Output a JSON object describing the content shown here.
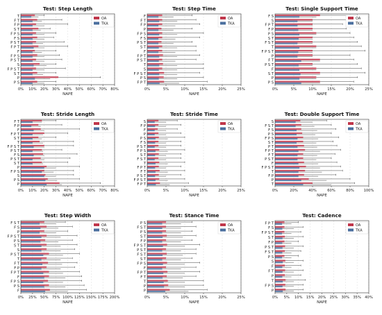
{
  "colors": {
    "oa": "#c0364a",
    "tka": "#4a6e9e",
    "grid": "#dddddd",
    "axis": "#333333",
    "whisker": "#444444"
  },
  "chart_data": [
    {
      "type": "bar",
      "title": "Test: Step Length",
      "xlabel": "NAPE",
      "xlim": [
        0,
        0.8
      ],
      "xticks": [
        0,
        0.1,
        0.2,
        0.3,
        0.4,
        0.5,
        0.6,
        0.7,
        0.8
      ],
      "xtick_labels": [
        "0%",
        "10%",
        "20%",
        "30%",
        "40%",
        "50%",
        "60%",
        "70%",
        "80%"
      ],
      "categories": [
        "T",
        "F T",
        "F P",
        "S T",
        "F P S",
        "F S",
        "P S T",
        "F P T",
        "F",
        "F P S",
        "P S T",
        "S",
        "F P S T",
        "S T",
        "P",
        "P S"
      ],
      "legend": [
        "OA",
        "TKA"
      ],
      "legend_position": "top-right",
      "series": [
        {
          "name": "OA",
          "values": [
            0.12,
            0.14,
            0.13,
            0.15,
            0.13,
            0.14,
            0.13,
            0.15,
            0.12,
            0.14,
            0.13,
            0.16,
            0.13,
            0.14,
            0.32,
            0.14
          ],
          "upper": [
            0.2,
            0.35,
            0.4,
            0.25,
            0.3,
            0.28,
            0.37,
            0.4,
            0.3,
            0.33,
            0.35,
            0.3,
            0.38,
            0.3,
            0.68,
            0.3
          ]
        },
        {
          "name": "TKA",
          "values": [
            0.09,
            0.1,
            0.1,
            0.1,
            0.1,
            0.1,
            0.1,
            0.11,
            0.1,
            0.1,
            0.1,
            0.11,
            0.1,
            0.1,
            0.12,
            0.1
          ],
          "upper": [
            0.15,
            0.18,
            0.2,
            0.17,
            0.2,
            0.2,
            0.19,
            0.2,
            0.18,
            0.2,
            0.2,
            0.22,
            0.2,
            0.19,
            0.25,
            0.2
          ]
        }
      ]
    },
    {
      "type": "bar",
      "title": "Test: Step Time",
      "xlabel": "NAPE",
      "xlim": [
        0,
        0.25
      ],
      "xticks": [
        0,
        0.05,
        0.1,
        0.15,
        0.2,
        0.25
      ],
      "xtick_labels": [
        "0%",
        "5%",
        "10%",
        "15%",
        "20%",
        "25%"
      ],
      "categories": [
        "F",
        "F T",
        "F P",
        "P",
        "F P S",
        "F S",
        "P S T",
        "S T",
        "F",
        "F P T",
        "P S T",
        "T",
        "S",
        "F P S T",
        "P S",
        "F P T"
      ],
      "legend": [
        "OA",
        "TKA"
      ],
      "legend_position": "top-right",
      "series": [
        {
          "name": "OA",
          "values": [
            0.04,
            0.04,
            0.04,
            0.038,
            0.04,
            0.04,
            0.038,
            0.04,
            0.04,
            0.042,
            0.04,
            0.042,
            0.04,
            0.045,
            0.044,
            0.045
          ],
          "upper": [
            0.12,
            0.13,
            0.14,
            0.12,
            0.15,
            0.14,
            0.12,
            0.13,
            0.13,
            0.14,
            0.13,
            0.15,
            0.15,
            0.14,
            0.15,
            0.16
          ]
        },
        {
          "name": "TKA",
          "values": [
            0.03,
            0.032,
            0.03,
            0.03,
            0.032,
            0.03,
            0.03,
            0.031,
            0.03,
            0.032,
            0.031,
            0.032,
            0.031,
            0.032,
            0.031,
            0.033
          ],
          "upper": [
            0.07,
            0.08,
            0.075,
            0.07,
            0.08,
            0.075,
            0.07,
            0.08,
            0.075,
            0.08,
            0.075,
            0.08,
            0.08,
            0.08,
            0.08,
            0.085
          ]
        }
      ]
    },
    {
      "type": "bar",
      "title": "Test: Single Support Time",
      "xlabel": "NAPE",
      "xlim": [
        0,
        0.25
      ],
      "xticks": [
        0,
        0.05,
        0.1,
        0.15,
        0.2,
        0.25
      ],
      "xtick_labels": [
        "0%",
        "5%",
        "10%",
        "15%",
        "20%",
        "25%"
      ],
      "categories": [
        "F S",
        "S",
        "F P T",
        "F P",
        "P S",
        "S T",
        "F S T",
        "T",
        "F P S T",
        "P",
        "F T",
        "P S T",
        "F",
        "S T",
        "P",
        "P S"
      ],
      "legend": [
        "OA",
        "TKA"
      ],
      "legend_position": "top-right",
      "series": [
        {
          "name": "OA",
          "values": [
            0.12,
            0.1,
            0.1,
            0.1,
            0.11,
            0.1,
            0.1,
            0.11,
            0.1,
            0.1,
            0.12,
            0.1,
            0.11,
            0.12,
            0.11,
            0.12
          ],
          "upper": [
            0.22,
            0.2,
            0.18,
            0.19,
            0.2,
            0.21,
            0.22,
            0.23,
            0.24,
            0.2,
            0.21,
            0.22,
            0.23,
            0.24,
            0.22,
            0.21
          ]
        },
        {
          "name": "TKA",
          "values": [
            0.065,
            0.06,
            0.06,
            0.062,
            0.065,
            0.063,
            0.06,
            0.065,
            0.062,
            0.06,
            0.07,
            0.063,
            0.065,
            0.068,
            0.065,
            0.07
          ],
          "upper": [
            0.11,
            0.1,
            0.1,
            0.1,
            0.11,
            0.1,
            0.1,
            0.11,
            0.1,
            0.1,
            0.12,
            0.1,
            0.11,
            0.12,
            0.11,
            0.12
          ]
        }
      ]
    },
    {
      "type": "bar",
      "title": "Test: Stride Length",
      "xlabel": "NAPE",
      "xlim": [
        0,
        0.8
      ],
      "xticks": [
        0,
        0.1,
        0.2,
        0.3,
        0.4,
        0.5,
        0.6,
        0.7,
        0.8
      ],
      "xtick_labels": [
        "0%",
        "10%",
        "20%",
        "30%",
        "40%",
        "50%",
        "60%",
        "70%",
        "80%"
      ],
      "categories": [
        "F T",
        "F P",
        "F",
        "F P T",
        "S T",
        "T",
        "F P S T",
        "P S T",
        "F S",
        "P S T",
        "S T",
        "P",
        "F P S",
        "S",
        "P S",
        "P"
      ],
      "legend": [
        "OA",
        "TKA"
      ],
      "legend_position": "top-right",
      "series": [
        {
          "name": "OA",
          "values": [
            0.18,
            0.15,
            0.17,
            0.2,
            0.15,
            0.16,
            0.2,
            0.18,
            0.19,
            0.17,
            0.18,
            0.22,
            0.2,
            0.21,
            0.23,
            0.33
          ],
          "upper": [
            0.3,
            0.35,
            0.5,
            0.4,
            0.3,
            0.45,
            0.45,
            0.35,
            0.48,
            0.42,
            0.4,
            0.5,
            0.45,
            0.45,
            0.5,
            0.68
          ]
        },
        {
          "name": "TKA",
          "values": [
            0.1,
            0.09,
            0.11,
            0.1,
            0.1,
            0.1,
            0.11,
            0.1,
            0.11,
            0.1,
            0.1,
            0.2,
            0.18,
            0.2,
            0.21,
            0.22
          ],
          "upper": [
            0.18,
            0.17,
            0.2,
            0.19,
            0.18,
            0.19,
            0.2,
            0.19,
            0.2,
            0.2,
            0.19,
            0.3,
            0.28,
            0.3,
            0.31,
            0.35
          ]
        }
      ]
    },
    {
      "type": "bar",
      "title": "Test: Stride Time",
      "xlabel": "NAPE",
      "xlim": [
        0,
        0.25
      ],
      "xticks": [
        0,
        0.05,
        0.1,
        0.15,
        0.2,
        0.25
      ],
      "xtick_labels": [
        "0%",
        "5%",
        "10%",
        "15%",
        "20%",
        "25%"
      ],
      "categories": [
        "S",
        "F P",
        "F",
        "P",
        "P S",
        "F S",
        "P S T",
        "F P S",
        "S T",
        "F S T",
        "T",
        "F P T",
        "F T",
        "P S T",
        "F P S T",
        "F P T"
      ],
      "legend": [
        "OA",
        "TKA"
      ],
      "legend_position": "top-right",
      "series": [
        {
          "name": "OA",
          "values": [
            0.03,
            0.03,
            0.028,
            0.03,
            0.031,
            0.03,
            0.03,
            0.032,
            0.031,
            0.03,
            0.032,
            0.031,
            0.033,
            0.031,
            0.032,
            0.034
          ],
          "upper": [
            0.08,
            0.09,
            0.08,
            0.09,
            0.1,
            0.09,
            0.09,
            0.1,
            0.09,
            0.09,
            0.1,
            0.09,
            0.1,
            0.09,
            0.1,
            0.11
          ]
        },
        {
          "name": "TKA",
          "values": [
            0.02,
            0.021,
            0.02,
            0.02,
            0.022,
            0.021,
            0.02,
            0.022,
            0.021,
            0.02,
            0.022,
            0.021,
            0.022,
            0.021,
            0.022,
            0.023
          ],
          "upper": [
            0.05,
            0.05,
            0.05,
            0.05,
            0.055,
            0.05,
            0.05,
            0.055,
            0.05,
            0.05,
            0.055,
            0.05,
            0.055,
            0.05,
            0.055,
            0.06
          ]
        }
      ]
    },
    {
      "type": "bar",
      "title": "Test: Double Support Time",
      "xlabel": "NAPE",
      "xlim": [
        0,
        1.0
      ],
      "xticks": [
        0,
        0.2,
        0.4,
        0.6,
        0.8,
        1.0
      ],
      "xtick_labels": [
        "0%",
        "20%",
        "40%",
        "60%",
        "80%",
        "100%"
      ],
      "categories": [
        "S",
        "F S T",
        "F S",
        "P S",
        "F P S",
        "S T",
        "P T",
        "F P T",
        "F T",
        "P S T",
        "F",
        "F P S T",
        "T",
        "F P",
        "P",
        "T"
      ],
      "legend": [
        "OA",
        "TKA"
      ],
      "legend_position": "top-right",
      "series": [
        {
          "name": "OA",
          "values": [
            0.27,
            0.28,
            0.28,
            0.29,
            0.3,
            0.3,
            0.31,
            0.32,
            0.3,
            0.3,
            0.31,
            0.33,
            0.32,
            0.31,
            0.36,
            0.4
          ],
          "upper": [
            0.55,
            0.6,
            0.65,
            0.6,
            0.68,
            0.62,
            0.66,
            0.7,
            0.64,
            0.6,
            0.66,
            0.7,
            0.72,
            0.65,
            0.8,
            0.85
          ]
        },
        {
          "name": "TKA",
          "values": [
            0.22,
            0.22,
            0.23,
            0.23,
            0.24,
            0.23,
            0.24,
            0.25,
            0.24,
            0.24,
            0.25,
            0.26,
            0.25,
            0.25,
            0.28,
            0.3
          ],
          "upper": [
            0.4,
            0.42,
            0.45,
            0.43,
            0.46,
            0.44,
            0.45,
            0.48,
            0.45,
            0.44,
            0.46,
            0.48,
            0.5,
            0.46,
            0.55,
            0.6
          ]
        }
      ]
    },
    {
      "type": "bar",
      "title": "Test: Step Width",
      "xlabel": "NAPE",
      "xlim": [
        0,
        2.0
      ],
      "xticks": [
        0,
        0.25,
        0.5,
        0.75,
        1.0,
        1.25,
        1.5,
        1.75,
        2.0
      ],
      "xtick_labels": [
        "0%",
        "25%",
        "50%",
        "75%",
        "100%",
        "125%",
        "150%",
        "175%",
        "200%"
      ],
      "categories": [
        "F S T",
        "F S",
        "P",
        "F P S T",
        "P S",
        "S T",
        "S",
        "P S T",
        "T",
        "F T",
        "F P",
        "F P T",
        "F",
        "F P S",
        "P S",
        "F"
      ],
      "legend": [
        "OA",
        "TKA"
      ],
      "legend_position": "top-right",
      "series": [
        {
          "name": "OA",
          "values": [
            0.5,
            0.55,
            0.5,
            0.55,
            0.52,
            0.55,
            0.55,
            0.6,
            0.55,
            0.58,
            0.55,
            0.6,
            0.6,
            0.58,
            0.6,
            0.62
          ],
          "upper": [
            0.95,
            1.1,
            1.0,
            1.2,
            1.1,
            1.2,
            1.15,
            1.25,
            1.1,
            1.2,
            1.15,
            1.25,
            1.3,
            1.3,
            1.35,
            1.4
          ]
        },
        {
          "name": "TKA",
          "values": [
            0.4,
            0.42,
            0.4,
            0.44,
            0.42,
            0.44,
            0.44,
            0.48,
            0.44,
            0.46,
            0.44,
            0.48,
            0.5,
            0.48,
            0.5,
            0.52
          ],
          "upper": [
            0.75,
            0.8,
            0.75,
            0.85,
            0.8,
            0.85,
            0.85,
            0.9,
            0.85,
            0.88,
            0.85,
            0.9,
            0.95,
            0.9,
            0.95,
            1.0
          ]
        }
      ]
    },
    {
      "type": "bar",
      "title": "Test: Stance Time",
      "xlabel": "NAPE",
      "xlim": [
        0,
        0.25
      ],
      "xticks": [
        0,
        0.05,
        0.1,
        0.15,
        0.2,
        0.25
      ],
      "xtick_labels": [
        "0%",
        "5%",
        "10%",
        "15%",
        "20%",
        "25%"
      ],
      "categories": [
        "P S",
        "F S T",
        "P S",
        "S T",
        "F P",
        "F P S T",
        "P S T",
        "F S T",
        "S T",
        "F P S",
        "F",
        "F P T",
        "F T",
        "T",
        "P",
        "P"
      ],
      "legend": [
        "OA",
        "TKA"
      ],
      "legend_position": "top-right",
      "series": [
        {
          "name": "OA",
          "values": [
            0.05,
            0.05,
            0.05,
            0.052,
            0.05,
            0.053,
            0.05,
            0.052,
            0.05,
            0.053,
            0.05,
            0.054,
            0.052,
            0.055,
            0.056,
            0.06
          ],
          "upper": [
            0.12,
            0.13,
            0.12,
            0.13,
            0.12,
            0.14,
            0.13,
            0.13,
            0.12,
            0.14,
            0.13,
            0.14,
            0.13,
            0.15,
            0.15,
            0.16
          ]
        },
        {
          "name": "TKA",
          "values": [
            0.04,
            0.04,
            0.04,
            0.041,
            0.04,
            0.042,
            0.04,
            0.041,
            0.04,
            0.042,
            0.04,
            0.043,
            0.041,
            0.044,
            0.045,
            0.048
          ],
          "upper": [
            0.09,
            0.09,
            0.09,
            0.095,
            0.09,
            0.1,
            0.09,
            0.095,
            0.09,
            0.1,
            0.09,
            0.1,
            0.095,
            0.1,
            0.1,
            0.11
          ]
        }
      ]
    },
    {
      "type": "bar",
      "title": "Test: Cadence",
      "xlabel": "NAPE",
      "xlim": [
        0,
        0.4
      ],
      "xticks": [
        0,
        0.05,
        0.1,
        0.15,
        0.2,
        0.25,
        0.3,
        0.35,
        0.4
      ],
      "xtick_labels": [
        "0%",
        "5%",
        "10%",
        "15%",
        "20%",
        "25%",
        "30%",
        "35%",
        "40%"
      ],
      "categories": [
        "F P T",
        "F S",
        "F P S T",
        "S T",
        "F P",
        "P S T",
        "F S T",
        "P S",
        "S",
        "F",
        "F T",
        "P",
        "T",
        "F P S",
        "P"
      ],
      "legend": [
        "OA",
        "TKA"
      ],
      "legend_position": "top-right",
      "series": [
        {
          "name": "OA",
          "values": [
            0.04,
            0.04,
            0.04,
            0.042,
            0.04,
            0.043,
            0.042,
            0.04,
            0.044,
            0.042,
            0.043,
            0.042,
            0.045,
            0.044,
            0.045
          ],
          "upper": [
            0.1,
            0.12,
            0.11,
            0.12,
            0.1,
            0.12,
            0.11,
            0.1,
            0.12,
            0.11,
            0.12,
            0.11,
            0.13,
            0.12,
            0.12
          ]
        },
        {
          "name": "TKA",
          "values": [
            0.03,
            0.031,
            0.03,
            0.032,
            0.031,
            0.032,
            0.031,
            0.03,
            0.033,
            0.031,
            0.032,
            0.031,
            0.033,
            0.032,
            0.033
          ],
          "upper": [
            0.07,
            0.08,
            0.07,
            0.08,
            0.07,
            0.08,
            0.07,
            0.07,
            0.08,
            0.07,
            0.08,
            0.07,
            0.08,
            0.08,
            0.08
          ]
        }
      ]
    }
  ]
}
